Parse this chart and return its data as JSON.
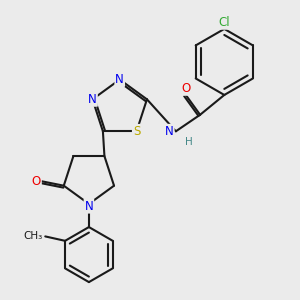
{
  "bg_color": "#ebebeb",
  "bond_color": "#1a1a1a",
  "bond_width": 1.5,
  "atom_colors": {
    "N": "#0000ee",
    "O": "#ee0000",
    "S": "#bbaa00",
    "Cl": "#33aa33",
    "C": "#1a1a1a",
    "H": "#448888"
  },
  "font_size": 8.5,
  "font_size_small": 7.5
}
